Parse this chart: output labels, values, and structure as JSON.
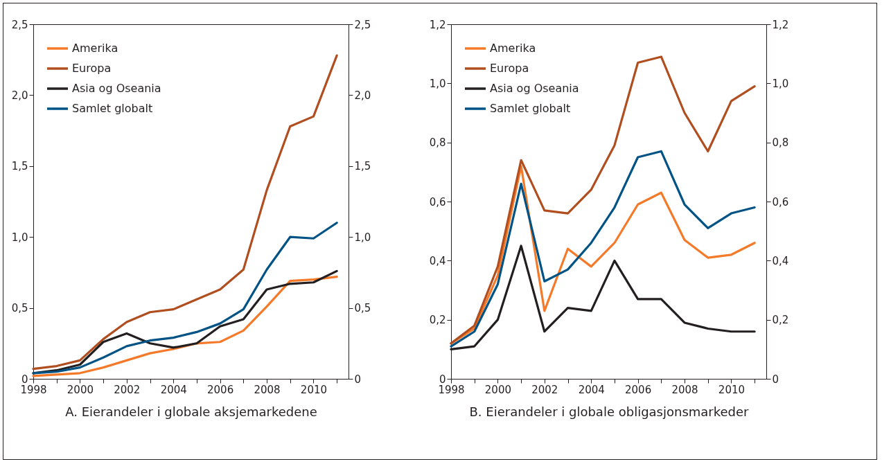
{
  "chart_data": [
    {
      "type": "line",
      "xlabel": "A. Eierandeler i globale aksjemarkedene",
      "x": [
        1998,
        1999,
        2000,
        2001,
        2002,
        2003,
        2004,
        2005,
        2006,
        2007,
        2008,
        2009,
        2010,
        2011
      ],
      "series": [
        {
          "name": "Amerika",
          "color": "#f47a2a",
          "values": [
            0.02,
            0.03,
            0.04,
            0.08,
            0.13,
            0.18,
            0.21,
            0.25,
            0.26,
            0.34,
            0.51,
            0.69,
            0.7,
            0.72
          ]
        },
        {
          "name": "Europa",
          "color": "#b04e1f",
          "values": [
            0.07,
            0.09,
            0.13,
            0.28,
            0.4,
            0.47,
            0.49,
            0.56,
            0.63,
            0.77,
            1.33,
            1.78,
            1.85,
            2.28
          ]
        },
        {
          "name": "Asia og Oseania",
          "color": "#231f20",
          "values": [
            0.04,
            0.06,
            0.1,
            0.26,
            0.32,
            0.25,
            0.22,
            0.25,
            0.37,
            0.42,
            0.63,
            0.67,
            0.68,
            0.76
          ]
        },
        {
          "name": "Samlet globalt",
          "color": "#005384",
          "values": [
            0.04,
            0.05,
            0.08,
            0.15,
            0.23,
            0.27,
            0.29,
            0.33,
            0.39,
            0.49,
            0.77,
            1.0,
            0.99,
            1.1
          ]
        }
      ],
      "xlim": [
        1998,
        2011.5
      ],
      "xticks": [
        1998,
        {
          "value": 1999,
          "label": null
        },
        2000,
        {
          "value": 2001,
          "label": null
        },
        2002,
        {
          "value": 2003,
          "label": null
        },
        2004,
        {
          "value": 2005,
          "label": null
        },
        2006,
        {
          "value": 2007,
          "label": null
        },
        2008,
        {
          "value": 2009,
          "label": null
        },
        2010,
        {
          "value": 2011,
          "label": null
        }
      ],
      "ylim": [
        0,
        2.5
      ],
      "yticks": [
        0,
        {
          "value": 0.5,
          "label": "0,5"
        },
        {
          "value": 1,
          "label": "1,0"
        },
        {
          "value": 1.5,
          "label": "1,5"
        },
        {
          "value": 2,
          "label": "2,0"
        },
        {
          "value": 2.5,
          "label": "2,5"
        }
      ],
      "y2lim": [
        0,
        2.5
      ],
      "y2ticks": [
        0,
        {
          "value": 0.5,
          "label": "0,5"
        },
        {
          "value": 1,
          "label": "1,0"
        },
        {
          "value": 1.5,
          "label": "1,5"
        },
        {
          "value": 2,
          "label": "2,0"
        },
        {
          "value": 2.5,
          "label": "2,5"
        }
      ],
      "legend": "top left",
      "grid": false
    },
    {
      "type": "line",
      "xlabel": "B. Eierandeler i globale obligasjonsmarkeder",
      "x": [
        1998,
        1999,
        2000,
        2001,
        2002,
        2003,
        2004,
        2005,
        2006,
        2007,
        2008,
        2009,
        2010,
        2011
      ],
      "series": [
        {
          "name": "Amerika",
          "color": "#f47a2a",
          "values": [
            0.12,
            0.17,
            0.35,
            0.72,
            0.23,
            0.44,
            0.38,
            0.46,
            0.59,
            0.63,
            0.47,
            0.41,
            0.42,
            0.46
          ]
        },
        {
          "name": "Europa",
          "color": "#b04e1f",
          "values": [
            0.12,
            0.18,
            0.38,
            0.74,
            0.57,
            0.56,
            0.64,
            0.79,
            1.07,
            1.09,
            0.9,
            0.77,
            0.94,
            0.99
          ]
        },
        {
          "name": "Asia og Oseania",
          "color": "#231f20",
          "values": [
            0.1,
            0.11,
            0.2,
            0.45,
            0.16,
            0.24,
            0.23,
            0.4,
            0.27,
            0.27,
            0.19,
            0.17,
            0.16,
            0.16
          ]
        },
        {
          "name": "Samlet globalt",
          "color": "#005384",
          "values": [
            0.11,
            0.16,
            0.32,
            0.66,
            0.33,
            0.37,
            0.46,
            0.58,
            0.75,
            0.77,
            0.59,
            0.51,
            0.56,
            0.58
          ]
        }
      ],
      "xlim": [
        1998,
        2011.5
      ],
      "xticks": [
        1998,
        {
          "value": 1999,
          "label": null
        },
        2000,
        {
          "value": 2001,
          "label": null
        },
        2002,
        {
          "value": 2003,
          "label": null
        },
        2004,
        {
          "value": 2005,
          "label": null
        },
        2006,
        {
          "value": 2007,
          "label": null
        },
        2008,
        {
          "value": 2009,
          "label": null
        },
        2010,
        {
          "value": 2011,
          "label": null
        }
      ],
      "ylim": [
        0,
        1.2
      ],
      "yticks": [
        0,
        {
          "value": 0.2,
          "label": "0,2"
        },
        {
          "value": 0.4,
          "label": "0,4"
        },
        {
          "value": 0.6,
          "label": "0,6"
        },
        {
          "value": 0.8,
          "label": "0,8"
        },
        {
          "value": 1,
          "label": "1,0"
        },
        {
          "value": 1.2,
          "label": "1,2"
        }
      ],
      "y2lim": [
        0,
        1.2
      ],
      "y2ticks": [
        0,
        {
          "value": 0.2,
          "label": "0,2"
        },
        {
          "value": 0.4,
          "label": "0,4"
        },
        {
          "value": 0.6,
          "label": "0,6"
        },
        {
          "value": 0.8,
          "label": "0,8"
        },
        {
          "value": 1,
          "label": "1,0"
        },
        {
          "value": 1.2,
          "label": "1,2"
        }
      ],
      "legend": "top left",
      "grid": false
    }
  ]
}
